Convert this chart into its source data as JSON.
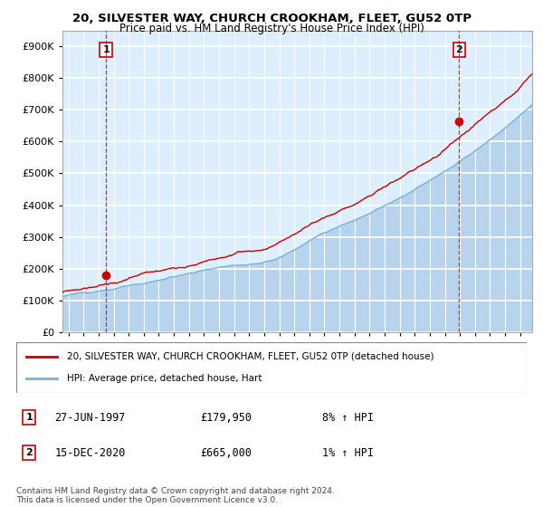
{
  "title1": "20, SILVESTER WAY, CHURCH CROOKHAM, FLEET, GU52 0TP",
  "title2": "Price paid vs. HM Land Registry's House Price Index (HPI)",
  "ytick_values": [
    0,
    100000,
    200000,
    300000,
    400000,
    500000,
    600000,
    700000,
    800000,
    900000
  ],
  "ylim": [
    0,
    950000
  ],
  "xlim_start": 1994.6,
  "xlim_end": 2025.8,
  "background_color": "#ddeeff",
  "grid_color": "#ffffff",
  "hpi_color": "#7ab0d8",
  "hpi_fill_color": "#b8d4ed",
  "price_color": "#cc0000",
  "marker_color": "#cc0000",
  "sale1_year": 1997.49,
  "sale1_price": 179950,
  "sale2_year": 2020.96,
  "sale2_price": 665000,
  "legend_label1": "20, SILVESTER WAY, CHURCH CROOKHAM, FLEET, GU52 0TP (detached house)",
  "legend_label2": "HPI: Average price, detached house, Hart",
  "note1_num": "1",
  "note1_date": "27-JUN-1997",
  "note1_price": "£179,950",
  "note1_hpi": "8% ↑ HPI",
  "note2_num": "2",
  "note2_date": "15-DEC-2020",
  "note2_price": "£665,000",
  "note2_hpi": "1% ↑ HPI",
  "footer": "Contains HM Land Registry data © Crown copyright and database right 2024.\nThis data is licensed under the Open Government Licence v3.0."
}
